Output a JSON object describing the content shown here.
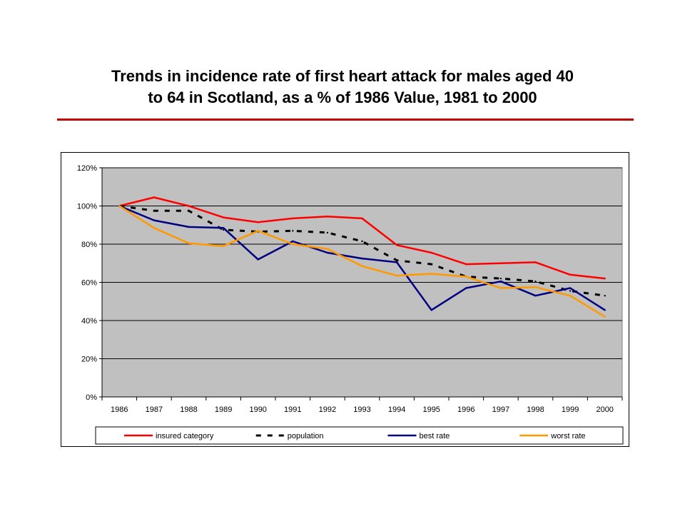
{
  "slide": {
    "title_line1": "Trends in incidence rate of first heart attack for males aged 40",
    "title_line2": "to 64 in Scotland, as a % of 1986 Value, 1981 to 2000"
  },
  "colors": {
    "title_rule": "#c00000",
    "plot_background": "#c0c0c0",
    "gridline": "#000000"
  },
  "chart_data": {
    "type": "line",
    "title": "Trends in incidence rate of first heart attack for males aged 40 to 64 in Scotland, as a % of 1986 Value, 1981 to 2000",
    "xlabel": "",
    "ylabel": "",
    "x": [
      "1986",
      "1987",
      "1988",
      "1989",
      "1990",
      "1991",
      "1992",
      "1993",
      "1994",
      "1995",
      "1996",
      "1997",
      "1998",
      "1999",
      "2000"
    ],
    "ylim": [
      0,
      120
    ],
    "yticks": [
      0,
      20,
      40,
      60,
      80,
      100,
      120
    ],
    "ytick_labels": [
      "0%",
      "20%",
      "40%",
      "60%",
      "80%",
      "100%",
      "120%"
    ],
    "grid": "horizontal",
    "legend_position": "bottom",
    "series": [
      {
        "name": "insured category",
        "color": "#ff0000",
        "style": "solid",
        "values": [
          100,
          104.5,
          100,
          94,
          91.5,
          93.5,
          94.5,
          93.5,
          79.5,
          75.5,
          69.5,
          70,
          70.5,
          64,
          62
        ]
      },
      {
        "name": "population",
        "color": "#000000",
        "style": "dashed",
        "values": [
          100,
          97.5,
          97.5,
          87.5,
          86.5,
          87,
          86,
          81.5,
          71.5,
          69.5,
          63,
          62,
          60.5,
          55.5,
          53
        ]
      },
      {
        "name": "best rate",
        "color": "#000080",
        "style": "solid",
        "values": [
          100,
          92.5,
          89,
          88.5,
          72,
          81.5,
          75.5,
          72.5,
          70.5,
          45.5,
          57,
          60.5,
          53,
          57,
          45.5
        ]
      },
      {
        "name": "worst rate",
        "color": "#ff9900",
        "style": "solid",
        "values": [
          100,
          88.5,
          80.5,
          79,
          87,
          80,
          77.5,
          68.5,
          63.5,
          64.5,
          63,
          57,
          57.5,
          53,
          42
        ]
      }
    ]
  }
}
